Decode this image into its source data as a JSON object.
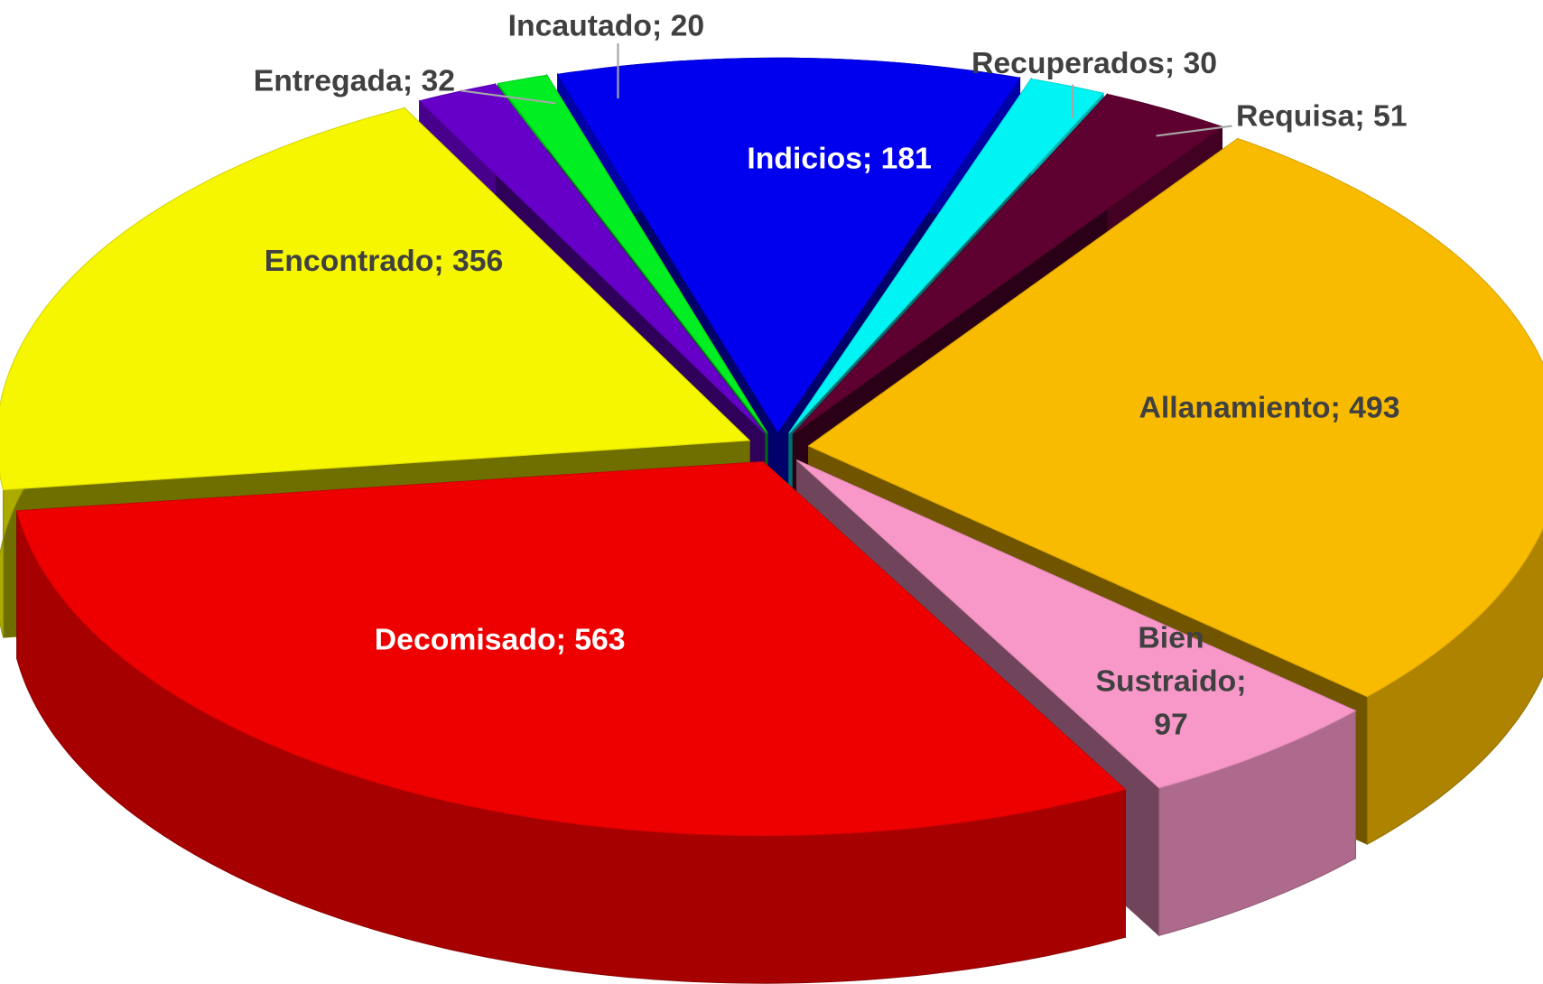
{
  "chart_data": {
    "type": "pie3d",
    "categories": [
      "Indicios",
      "Recuperados",
      "Requisa",
      "Allanamiento",
      "Bien Sustraido",
      "Decomisado",
      "Encontrado",
      "Entregada",
      "Incautado"
    ],
    "values": [
      181,
      30,
      51,
      493,
      97,
      563,
      356,
      32,
      20
    ],
    "value_labels": [
      "Indicios; 181",
      "Recuperados; 30",
      "Requisa; 51",
      "Allanamiento; 493",
      "Bien Sustraido; 97",
      "Decomisado; 563",
      "Encontrado; 356",
      "Entregada; 32",
      "Incautado; 20"
    ],
    "colors": [
      "#0000ee",
      "#00f4f4",
      "#5e0030",
      "#f9bb00",
      "#f898c8",
      "#ee0000",
      "#f6f600",
      "#6600c8",
      "#00ee22"
    ]
  }
}
